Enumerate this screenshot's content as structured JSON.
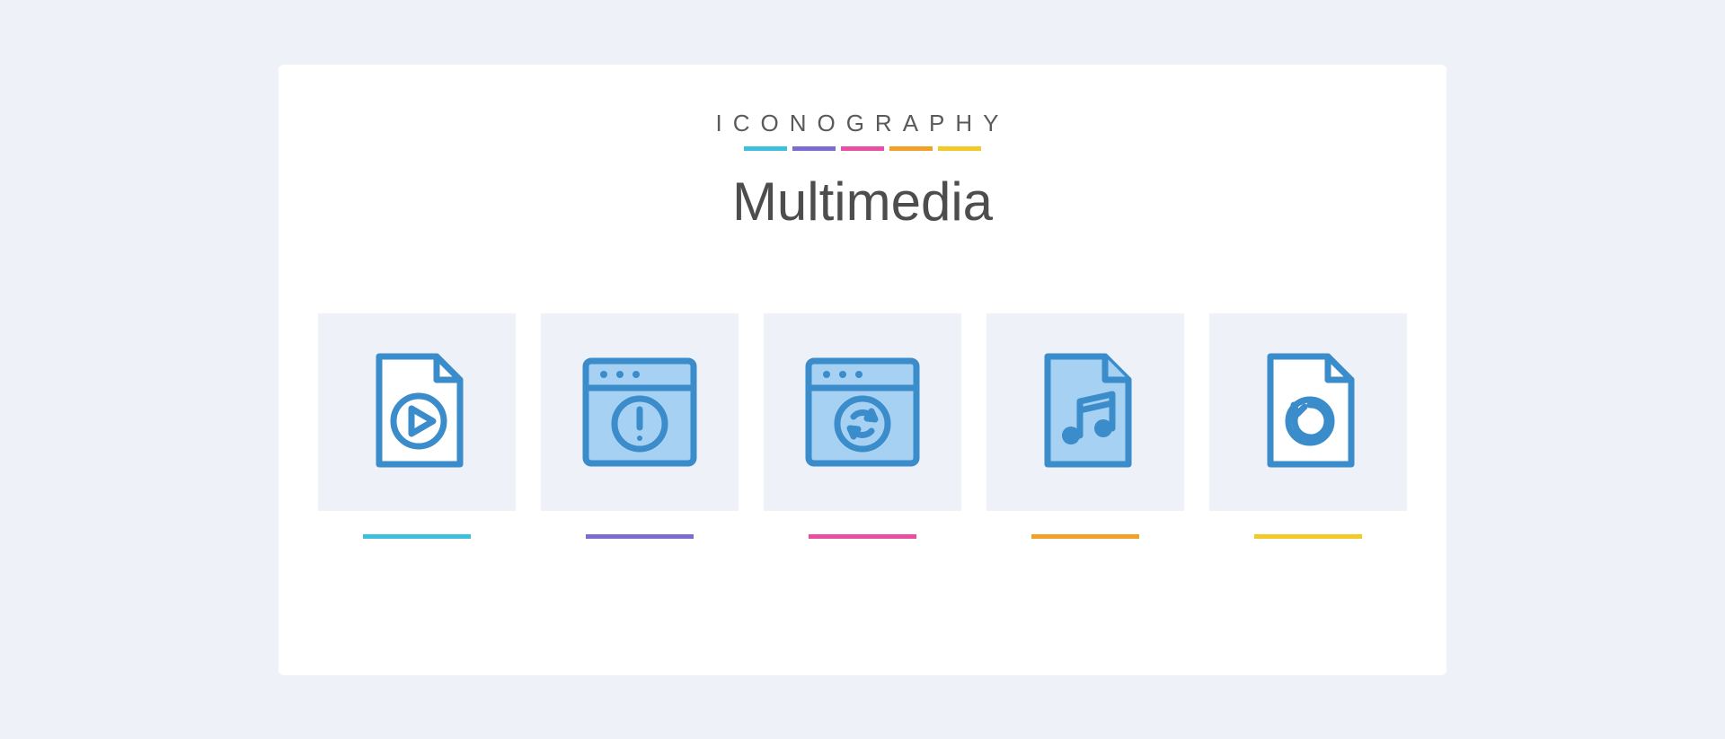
{
  "brand": "ICONOGRAPHY",
  "title": "Multimedia",
  "palette": {
    "page_bg": "#eef1f7",
    "card_bg": "#ffffff",
    "tile_bg": "#eef1f7",
    "icon_stroke": "#3b8ccb",
    "icon_fill": "#a6d1f2",
    "brand_text": "#5a5a5a",
    "title_text": "#4d4d4d"
  },
  "accent_colors": [
    "#3cc0dd",
    "#7d6bd1",
    "#e84fa3",
    "#f2a127",
    "#f2c927"
  ],
  "icons": [
    {
      "name": "video-file-icon",
      "type": "file-play",
      "style": "outlined",
      "accent": "#3cc0dd"
    },
    {
      "name": "app-alert-icon",
      "type": "window-alert",
      "style": "filled",
      "accent": "#7d6bd1"
    },
    {
      "name": "app-sync-icon",
      "type": "window-sync",
      "style": "filled",
      "accent": "#e84fa3"
    },
    {
      "name": "music-file-icon",
      "type": "file-music",
      "style": "filled",
      "accent": "#f2a127"
    },
    {
      "name": "reload-file-icon",
      "type": "file-reload",
      "style": "outlined",
      "accent": "#f2c927"
    }
  ],
  "typography": {
    "brand_fontsize": 26,
    "brand_letterspacing": 12,
    "title_fontsize": 60
  }
}
